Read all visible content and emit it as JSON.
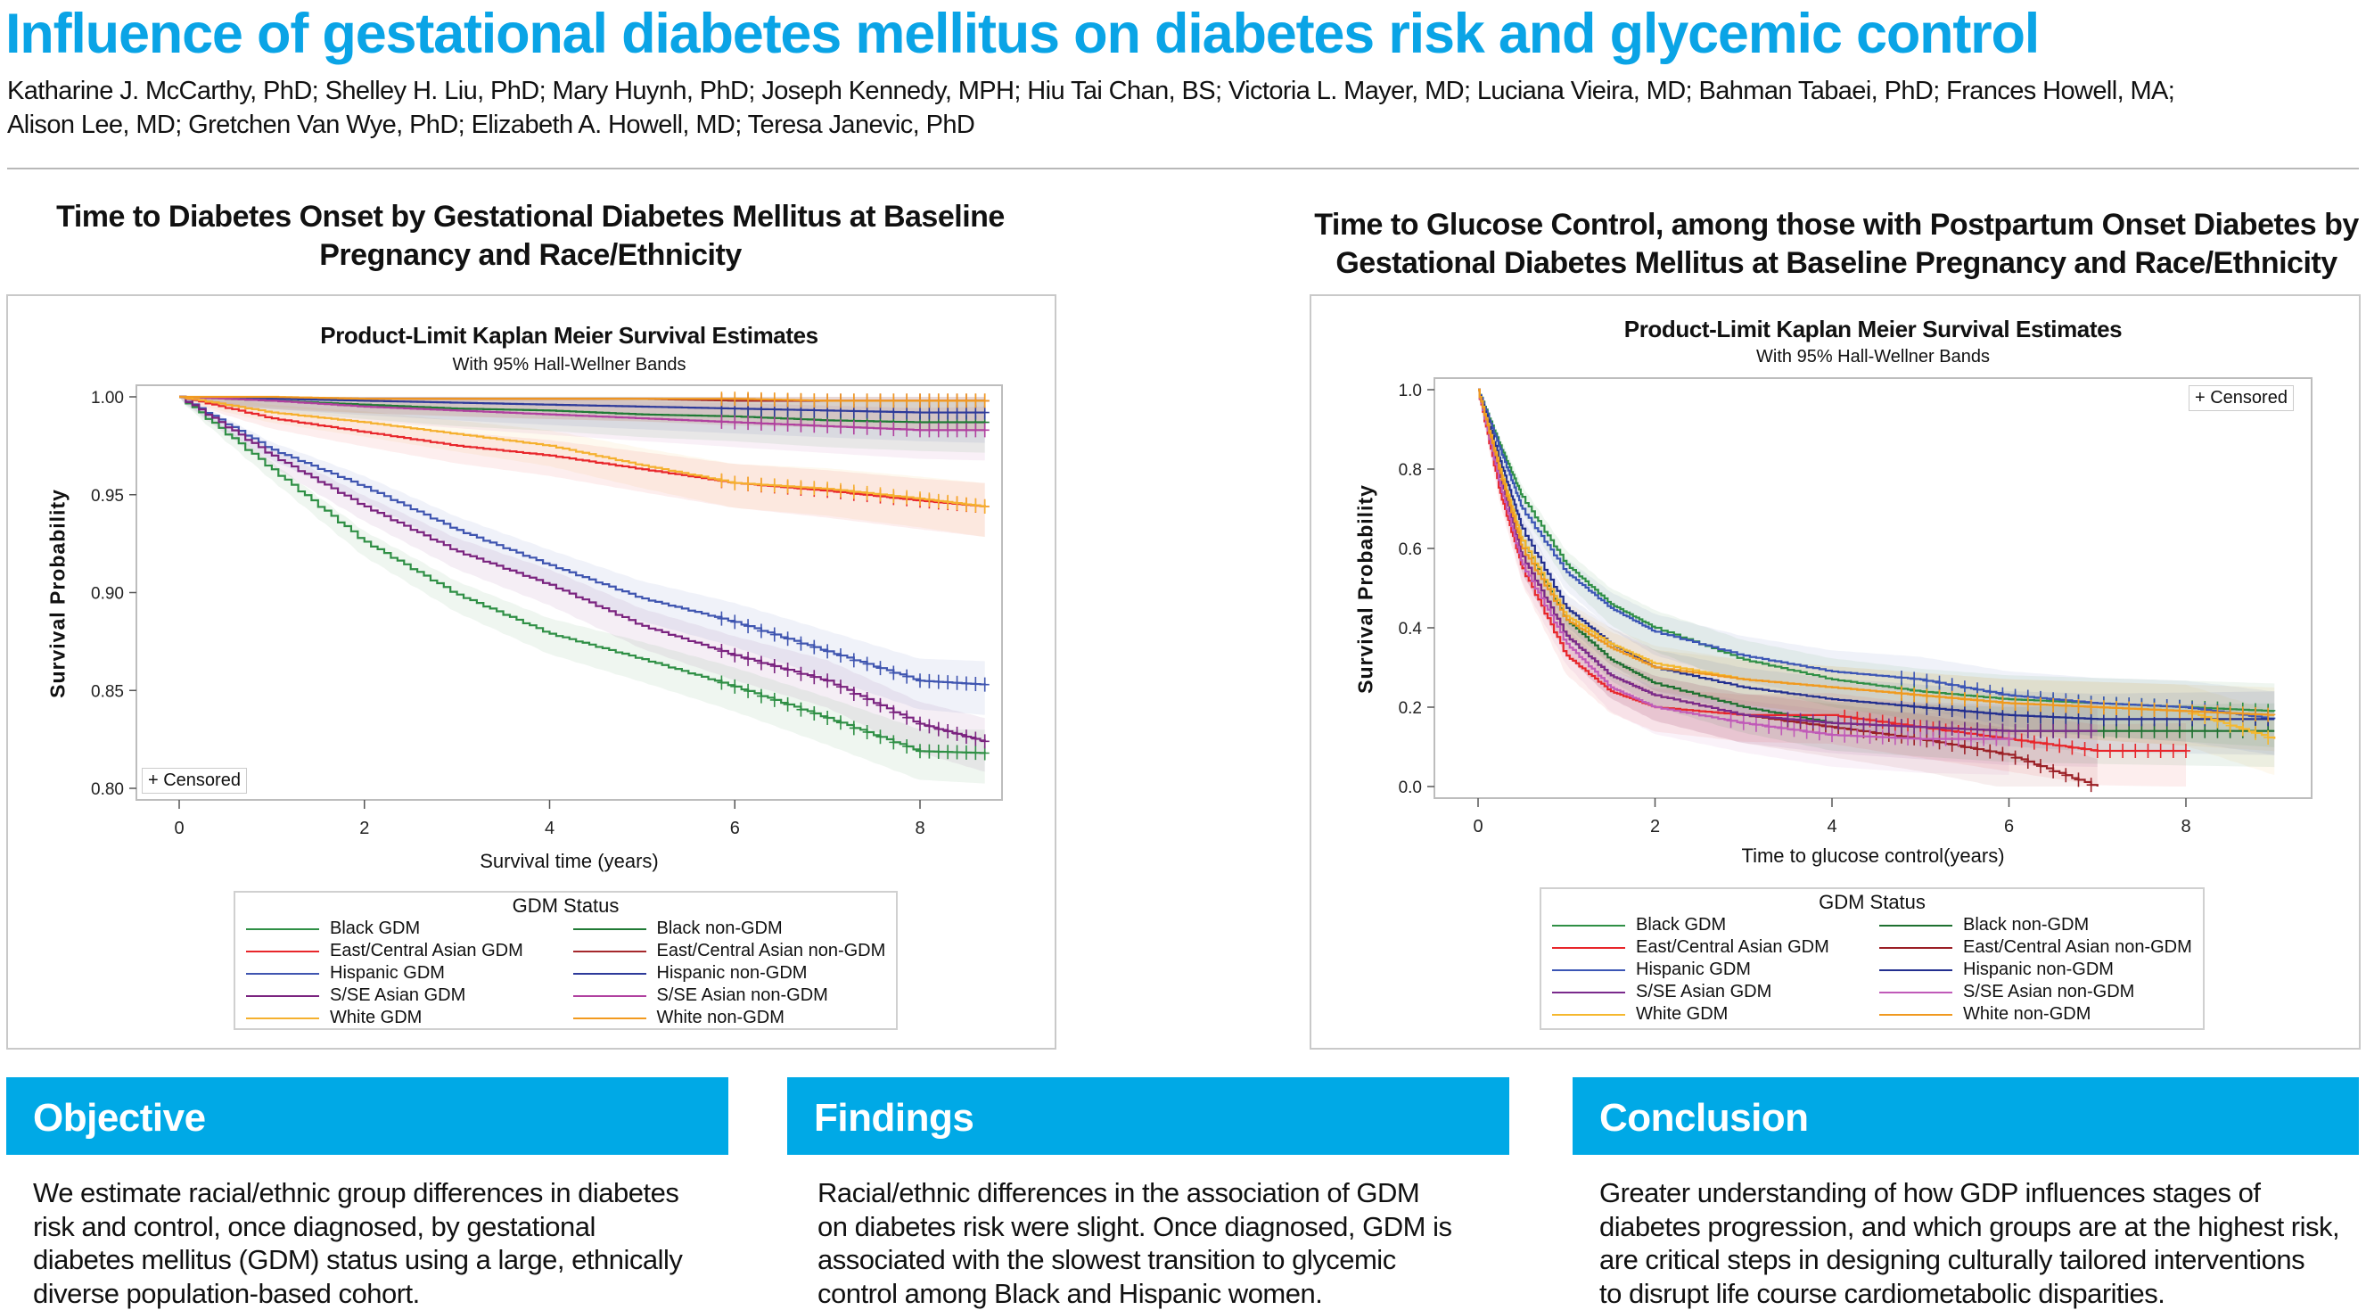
{
  "poster": {
    "title": "Influence of gestational diabetes mellitus on diabetes risk and glycemic control",
    "authors_line1": "Katharine J. McCarthy, PhD; Shelley H. Liu, PhD; Mary Huynh, PhD; Joseph Kennedy, MPH; Hiu Tai Chan, BS; Victoria L. Mayer, MD; Luciana Vieira, MD; Bahman Tabaei, PhD; Frances Howell, MA;",
    "authors_line2": "Alison Lee, MD; Gretchen Van Wye, PhD; Elizabeth A. Howell, MD; Teresa Janevic, PhD",
    "accent_color": "#0aa4e6"
  },
  "left_section": {
    "heading_line1": "Time to Diabetes Onset by Gestational Diabetes Mellitus at Baseline",
    "heading_line2": "Pregnancy and Race/Ethnicity"
  },
  "right_section": {
    "heading_line1": "Time to Glucose Control, among those with Postpartum Onset Diabetes by",
    "heading_line2": "Gestational Diabetes Mellitus at Baseline Pregnancy and Race/Ethnicity"
  },
  "chart_data": [
    {
      "type": "line",
      "title": "Product-Limit Kaplan Meier Survival Estimates",
      "subtitle": "With 95% Hall-Wellner Bands",
      "xlabel": "Survival time (years)",
      "ylabel": "Survival Probability",
      "xlim": [
        0,
        8.7
      ],
      "ylim": [
        0.8,
        1.0
      ],
      "x_ticks": [
        "0",
        "2",
        "4",
        "6",
        "8"
      ],
      "y_ticks": [
        "1.00",
        "0.95",
        "0.90",
        "0.85",
        "0.80"
      ],
      "grid": false,
      "censored_label": "+ Censored",
      "censored_legend_placement": "bottom-left",
      "legend_title": "GDM Status",
      "legend_placement": "bottom",
      "x": [
        0,
        1,
        2,
        3,
        4,
        5,
        6,
        7,
        8,
        8.7
      ],
      "series": [
        {
          "name": "Black GDM",
          "color": "#2f8f45",
          "values": [
            1,
            0.963,
            0.926,
            0.899,
            0.879,
            0.866,
            0.852,
            0.836,
            0.819,
            0.818
          ]
        },
        {
          "name": "Black non-GDM",
          "color": "#207a35",
          "values": [
            1,
            0.998,
            0.996,
            0.994,
            0.993,
            0.991,
            0.99,
            0.988,
            0.987,
            0.987
          ]
        },
        {
          "name": "East/Central Asian GDM",
          "color": "#e8262b",
          "values": [
            1,
            0.989,
            0.982,
            0.975,
            0.97,
            0.963,
            0.956,
            0.952,
            0.947,
            0.944
          ]
        },
        {
          "name": "East/Central Asian non-GDM",
          "color": "#a5282c",
          "values": [
            1,
            0.999,
            0.999,
            0.999,
            0.999,
            0.999,
            0.998,
            0.998,
            0.998,
            0.998
          ]
        },
        {
          "name": "Hispanic GDM",
          "color": "#3f55b0",
          "values": [
            1,
            0.973,
            0.954,
            0.932,
            0.914,
            0.897,
            0.885,
            0.87,
            0.855,
            0.853
          ]
        },
        {
          "name": "Hispanic non-GDM",
          "color": "#2d3a9a",
          "values": [
            1,
            0.999,
            0.998,
            0.997,
            0.996,
            0.995,
            0.994,
            0.993,
            0.992,
            0.992
          ]
        },
        {
          "name": "S/SE Asian GDM",
          "color": "#7a237f",
          "values": [
            1,
            0.97,
            0.944,
            0.921,
            0.904,
            0.883,
            0.868,
            0.855,
            0.833,
            0.824
          ]
        },
        {
          "name": "S/SE Asian non-GDM",
          "color": "#b0409f",
          "values": [
            1,
            0.998,
            0.995,
            0.993,
            0.991,
            0.989,
            0.987,
            0.985,
            0.983,
            0.983
          ]
        },
        {
          "name": "White GDM",
          "color": "#f5b02e",
          "values": [
            1,
            0.992,
            0.987,
            0.981,
            0.975,
            0.965,
            0.956,
            0.953,
            0.948,
            0.944
          ]
        },
        {
          "name": "White non-GDM",
          "color": "#f29a1f",
          "values": [
            1,
            1.0,
            0.999,
            0.999,
            0.999,
            0.999,
            0.999,
            0.998,
            0.998,
            0.998
          ]
        }
      ]
    },
    {
      "type": "line",
      "title": "Product-Limit Kaplan Meier Survival Estimates",
      "subtitle": "With 95% Hall-Wellner Bands",
      "xlabel": "Time to glucose control(years)",
      "ylabel": "Survival Probability",
      "xlim": [
        0,
        9.3
      ],
      "ylim": [
        0.0,
        1.0
      ],
      "x_ticks": [
        "0",
        "2",
        "4",
        "6",
        "8"
      ],
      "y_ticks": [
        "1.0",
        "0.8",
        "0.6",
        "0.4",
        "0.2",
        "0.0"
      ],
      "grid": false,
      "censored_label": "+ Censored",
      "censored_legend_placement": "top-right",
      "legend_title": "GDM Status",
      "legend_placement": "bottom",
      "x": [
        0,
        0.25,
        0.5,
        1,
        1.5,
        2,
        3,
        4,
        5,
        6,
        7,
        8,
        9
      ],
      "series": [
        {
          "name": "Black GDM",
          "color": "#2f8f45",
          "values": [
            1,
            0.86,
            0.73,
            0.56,
            0.46,
            0.4,
            0.32,
            0.27,
            0.24,
            0.22,
            0.21,
            0.2,
            0.19
          ]
        },
        {
          "name": "Black non-GDM",
          "color": "#1e7030",
          "values": [
            1,
            0.8,
            0.62,
            0.42,
            0.32,
            0.26,
            0.2,
            0.16,
            0.15,
            0.14,
            0.14,
            0.14,
            0.14
          ]
        },
        {
          "name": "East/Central Asian GDM",
          "color": "#e8262b",
          "values": [
            1,
            0.74,
            0.55,
            0.33,
            0.24,
            0.2,
            0.18,
            0.18,
            0.15,
            0.12,
            0.09,
            0.09,
            null
          ]
        },
        {
          "name": "East/Central Asian non-GDM",
          "color": "#9b2026",
          "values": [
            1,
            0.78,
            0.58,
            0.38,
            0.28,
            0.23,
            0.18,
            0.15,
            0.12,
            0.08,
            0.0,
            null,
            null
          ]
        },
        {
          "name": "Hispanic GDM",
          "color": "#3b55b5",
          "values": [
            1,
            0.85,
            0.7,
            0.54,
            0.45,
            0.39,
            0.33,
            0.29,
            0.27,
            0.23,
            0.21,
            0.2,
            0.17
          ]
        },
        {
          "name": "Hispanic non-GDM",
          "color": "#222f8f",
          "values": [
            1,
            0.82,
            0.65,
            0.45,
            0.36,
            0.3,
            0.25,
            0.22,
            0.2,
            0.18,
            0.17,
            0.17,
            0.17
          ]
        },
        {
          "name": "S/SE Asian GDM",
          "color": "#7a2a8c",
          "values": [
            1,
            0.78,
            0.58,
            0.38,
            0.28,
            0.23,
            0.18,
            0.16,
            0.15,
            0.14,
            0.14,
            null,
            null
          ]
        },
        {
          "name": "S/SE Asian non-GDM",
          "color": "#c05ab8",
          "values": [
            1,
            0.76,
            0.56,
            0.36,
            0.25,
            0.2,
            0.16,
            0.13,
            0.12,
            0.12,
            null,
            null,
            null
          ]
        },
        {
          "name": "White GDM",
          "color": "#f5b82e",
          "values": [
            1,
            0.8,
            0.62,
            0.43,
            0.36,
            0.31,
            0.27,
            0.25,
            0.23,
            0.21,
            0.2,
            0.19,
            0.12
          ]
        },
        {
          "name": "White non-GDM",
          "color": "#f0991f",
          "values": [
            1,
            0.79,
            0.6,
            0.42,
            0.35,
            0.3,
            0.27,
            0.25,
            0.23,
            0.21,
            0.2,
            0.19,
            0.18
          ]
        }
      ]
    }
  ],
  "boxes": [
    {
      "heading": "Objective",
      "lines": [
        "We estimate racial/ethnic group differences in diabetes",
        "risk and control, once diagnosed, by gestational",
        "diabetes mellitus (GDM) status using a large, ethnically",
        "diverse population-based cohort."
      ]
    },
    {
      "heading": "Findings",
      "lines": [
        "Racial/ethnic differences in the association of GDM",
        "on diabetes risk were slight. Once diagnosed, GDM is",
        "associated with the slowest transition to glycemic",
        "control among Black and Hispanic women."
      ]
    },
    {
      "heading": "Conclusion",
      "lines": [
        "Greater understanding of how GDP influences stages of",
        "diabetes progression, and which groups are at the highest risk,",
        "are critical steps in designing culturally tailored interventions",
        "to disrupt life course cardiometabolic disparities."
      ]
    }
  ]
}
